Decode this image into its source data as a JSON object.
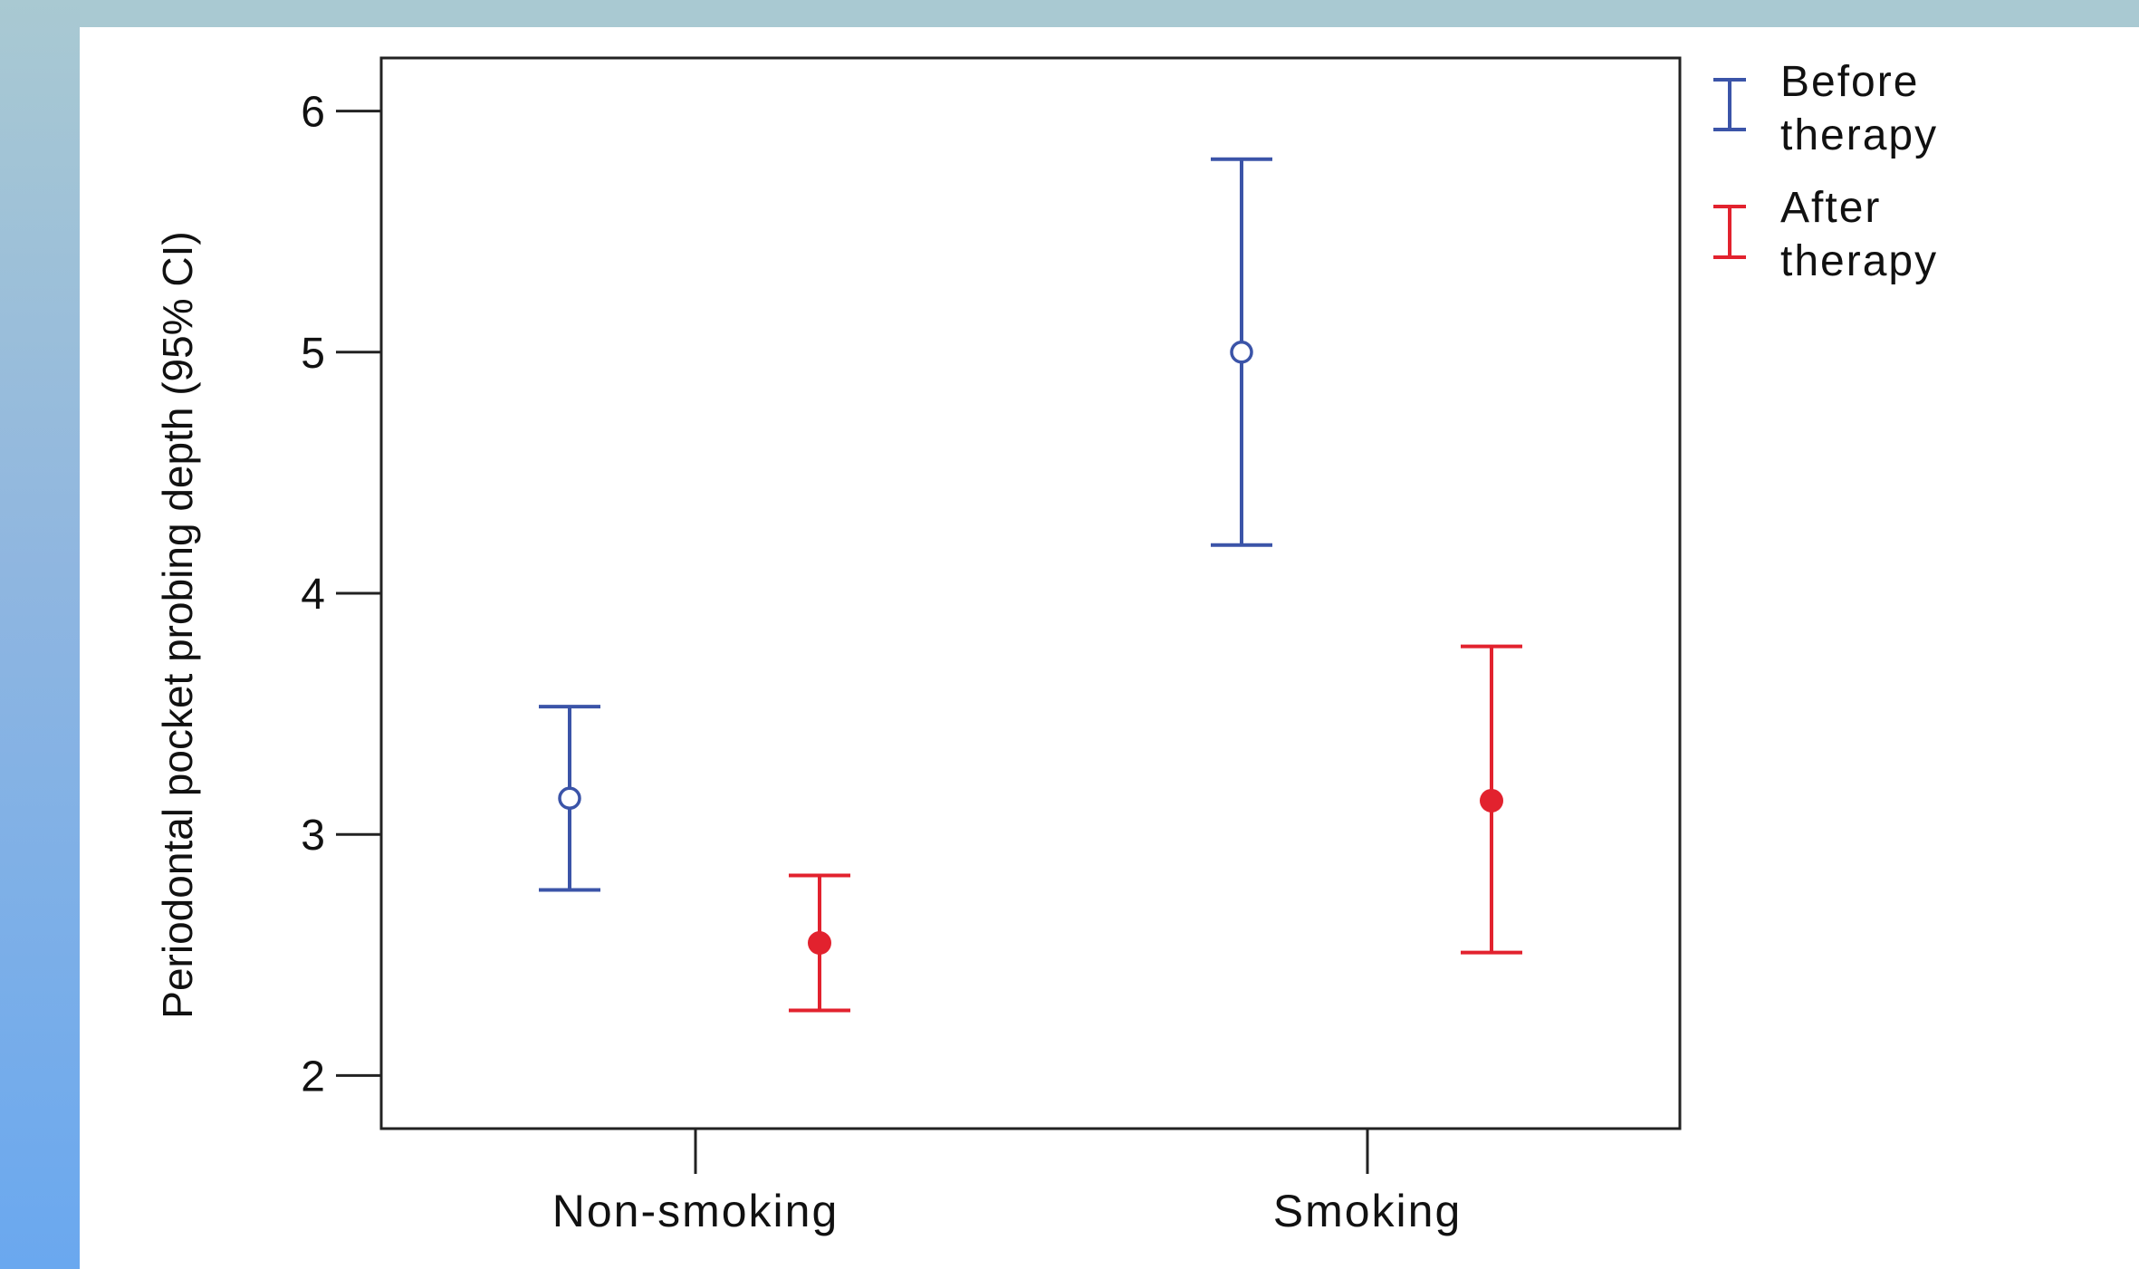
{
  "chart_data": {
    "type": "errorbar",
    "categories": [
      "Non-smoking",
      "Smoking"
    ],
    "ylabel": "Periodontal pocket probing depth (95% CI)",
    "xlabel": "",
    "ylim": [
      1.78,
      6.22
    ],
    "yticks": [
      2,
      3,
      4,
      5,
      6
    ],
    "ytick_labels": [
      "2",
      "3",
      "4",
      "5",
      "6"
    ],
    "grid": false,
    "legend_position": "top-right outside plot",
    "series": [
      {
        "name": "Before therapy",
        "color": "#3b54a8",
        "marker": "open-circle",
        "points": [
          {
            "category": "Non-smoking",
            "mean": 3.15,
            "lower": 2.77,
            "upper": 3.53
          },
          {
            "category": "Smoking",
            "mean": 5.0,
            "lower": 4.2,
            "upper": 5.8
          }
        ]
      },
      {
        "name": "After therapy",
        "color": "#e2222e",
        "marker": "filled-circle",
        "points": [
          {
            "category": "Non-smoking",
            "mean": 2.55,
            "lower": 2.27,
            "upper": 2.83
          },
          {
            "category": "Smoking",
            "mean": 3.14,
            "lower": 2.51,
            "upper": 3.78
          }
        ]
      }
    ],
    "legend": [
      {
        "line1": "Before",
        "line2": "therapy"
      },
      {
        "line1": "After",
        "line2": "therapy"
      }
    ]
  },
  "frame_colors": {
    "top_band": "#a9c9d2",
    "left_band_top": "#a9c9d2",
    "left_band_bottom": "#6aa8ef"
  }
}
